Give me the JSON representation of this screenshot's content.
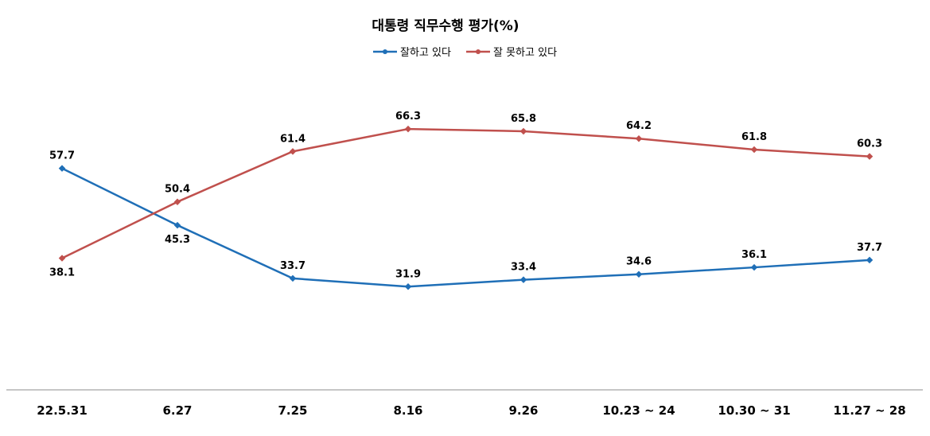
{
  "chart_data": {
    "type": "line",
    "title": "대통령 직무수행 평가(%)",
    "categories": [
      "22.5.31",
      "6.27",
      "7.25",
      "8.16",
      "9.26",
      "10.23 ~ 24",
      "10.30 ~ 31",
      "11.27 ~ 28"
    ],
    "series": [
      {
        "name": "잘하고 있다",
        "color": "#1f6fb7",
        "values": [
          57.7,
          45.3,
          33.7,
          31.9,
          33.4,
          34.6,
          36.1,
          37.7
        ]
      },
      {
        "name": "잘 못하고 있다",
        "color": "#c0504d",
        "values": [
          38.1,
          50.4,
          61.4,
          66.3,
          65.8,
          64.2,
          61.8,
          60.3
        ]
      }
    ],
    "legend_position": "top-center",
    "grid": false
  }
}
